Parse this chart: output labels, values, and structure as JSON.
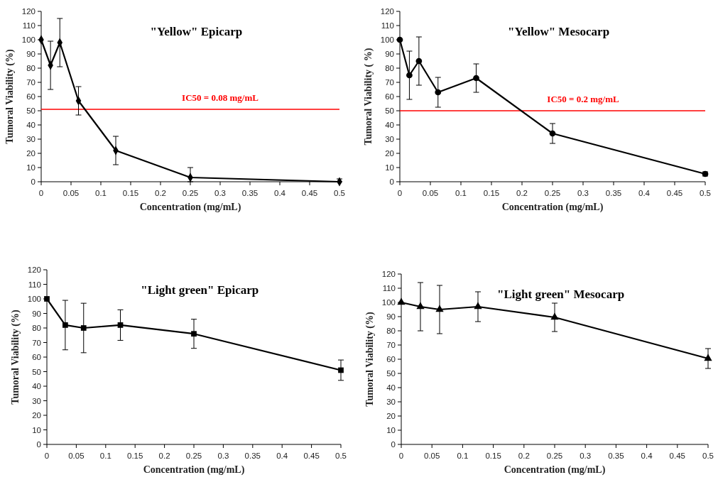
{
  "chart_data": [
    {
      "type": "line",
      "title": "\"Yellow\" Epicarp",
      "xlabel": "Concentration (mg/mL)",
      "ylabel": "Tumoral Viability (%)",
      "xlim": [
        0,
        0.5
      ],
      "xticks": [
        0,
        0.05,
        0.1,
        0.15,
        0.2,
        0.25,
        0.3,
        0.35,
        0.4,
        0.45,
        0.5
      ],
      "ylim": [
        0,
        120
      ],
      "yticks": [
        0,
        10,
        20,
        30,
        40,
        50,
        60,
        70,
        80,
        90,
        100,
        110,
        120
      ],
      "grid": false,
      "marker": "diamond",
      "line_style": "solid",
      "x": [
        0,
        0.015625,
        0.03125,
        0.0625,
        0.125,
        0.25,
        0.5
      ],
      "series": [
        {
          "color": "#000000",
          "values": [
            100,
            82,
            98,
            57,
            22,
            3,
            0
          ],
          "errors": [
            null,
            17,
            17,
            10,
            10,
            [
              0,
              10
            ],
            [
              0,
              2
            ]
          ]
        }
      ],
      "ref_lines": [
        {
          "axis": "y",
          "value": 51,
          "color": "#ff0000"
        }
      ],
      "annotations": [
        "IC50 = 0.08 mg/mL"
      ]
    },
    {
      "type": "line",
      "title": "\"Yellow\" Mesocarp",
      "xlabel": "Concentration (mg/mL)",
      "ylabel": "Tumoral Viability ( %)",
      "xlim": [
        0,
        0.5
      ],
      "xticks": [
        0,
        0.05,
        0.1,
        0.15,
        0.2,
        0.25,
        0.3,
        0.35,
        0.4,
        0.45,
        0.5
      ],
      "ylim": [
        0,
        120
      ],
      "yticks": [
        0,
        10,
        20,
        30,
        40,
        50,
        60,
        70,
        80,
        90,
        100,
        110,
        120
      ],
      "grid": false,
      "marker": "circle",
      "line_style": "solid",
      "x": [
        0,
        0.015625,
        0.03125,
        0.0625,
        0.125,
        0.25,
        0.5
      ],
      "series": [
        {
          "color": "#000000",
          "values": [
            100,
            75,
            85,
            63,
            73,
            34,
            5.5
          ],
          "errors": [
            null,
            17,
            17,
            10.5,
            10,
            7,
            1.5
          ]
        }
      ],
      "ref_lines": [
        {
          "axis": "y",
          "value": 50,
          "color": "#ff0000"
        }
      ],
      "annotations": [
        "IC50 = 0.2 mg/mL"
      ]
    },
    {
      "type": "line",
      "title": "\"Light green\" Epicarp",
      "xlabel": "Concentration (mg/mL)",
      "ylabel": "Tumoral Viability (%)",
      "xlim": [
        0,
        0.5
      ],
      "xticks": [
        0,
        0.05,
        0.1,
        0.15,
        0.2,
        0.25,
        0.3,
        0.35,
        0.4,
        0.45,
        0.5
      ],
      "ylim": [
        0,
        120
      ],
      "yticks": [
        0,
        10,
        20,
        30,
        40,
        50,
        60,
        70,
        80,
        90,
        100,
        110,
        120
      ],
      "grid": false,
      "marker": "square",
      "line_style": "solid",
      "x": [
        0,
        0.03125,
        0.0625,
        0.125,
        0.25,
        0.5
      ],
      "series": [
        {
          "color": "#000000",
          "values": [
            100,
            82,
            80,
            82,
            76,
            51
          ],
          "errors": [
            null,
            17,
            17,
            10.5,
            10,
            7
          ]
        }
      ]
    },
    {
      "type": "line",
      "title": "\"Light green\" Mesocarp",
      "xlabel": "Concentration (mg/mL)",
      "ylabel": "Tumoral Viability (%)",
      "xlim": [
        0,
        0.5
      ],
      "xticks": [
        0,
        0.05,
        0.1,
        0.15,
        0.2,
        0.25,
        0.3,
        0.35,
        0.4,
        0.45,
        0.5
      ],
      "ylim": [
        0,
        120
      ],
      "yticks": [
        0,
        10,
        20,
        30,
        40,
        50,
        60,
        70,
        80,
        90,
        100,
        110,
        120
      ],
      "grid": false,
      "marker": "triangle",
      "line_style": "solid",
      "x": [
        0,
        0.03125,
        0.0625,
        0.125,
        0.25,
        0.5
      ],
      "series": [
        {
          "color": "#000000",
          "values": [
            100,
            97,
            95,
            97,
            89.5,
            60.5
          ],
          "errors": [
            null,
            17,
            17,
            10.5,
            10,
            7
          ]
        }
      ]
    }
  ]
}
